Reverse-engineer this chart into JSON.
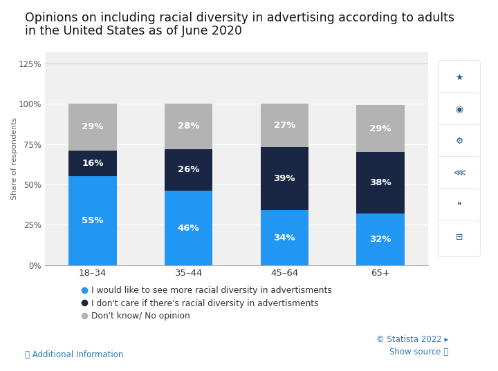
{
  "categories": [
    "18–34",
    "35–44",
    "45–64",
    "65+"
  ],
  "series": {
    "want_more": [
      55,
      46,
      34,
      32
    ],
    "dont_care": [
      16,
      26,
      39,
      38
    ],
    "dont_know": [
      29,
      28,
      27,
      29
    ]
  },
  "colors": {
    "want_more": "#2196f3",
    "dont_care": "#1a2744",
    "dont_know": "#b3b3b3"
  },
  "legend_labels": [
    "I would like to see more racial diversity in advertisments",
    "I don't care if there's racial diversity in advertisments",
    "Don't know/ No opinion"
  ],
  "ylabel": "Share of respondents",
  "yticks": [
    0,
    25,
    50,
    75,
    100,
    125
  ],
  "ytick_labels": [
    "0%",
    "25%",
    "50%",
    "75%",
    "100%",
    "125%"
  ],
  "title_line1": "Opinions on including racial diversity in advertising according to adults",
  "title_line2": "in the United States as of June 2020",
  "chart_bg": "#f0f0f0",
  "outer_bg": "#ffffff",
  "bar_width": 0.5,
  "label_fontsize": 9.5,
  "title_fontsize": 12.5,
  "footer_left": "ⓘ Additional Information",
  "footer_right_statista": "© Statista 2022 ▸",
  "footer_right_source": "Show source ⓘ",
  "link_color": "#2b7bb9"
}
